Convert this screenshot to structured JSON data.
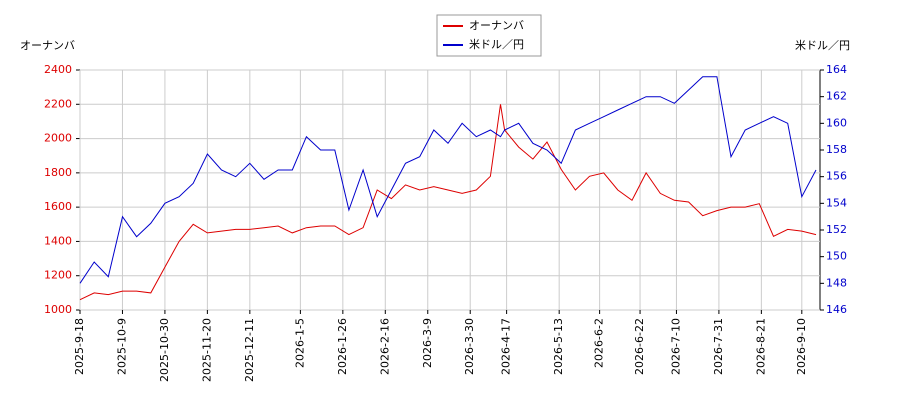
{
  "chart_data": {
    "type": "line",
    "y_label": "オーナンバ",
    "y2_label": "米ドル／円",
    "x": [
      "2025-9-18",
      "2025-9-25",
      "2025-10-2",
      "2025-10-9",
      "2025-10-16",
      "2025-10-23",
      "2025-10-30",
      "2025-11-6",
      "2025-11-13",
      "2025-11-20",
      "2025-11-27",
      "2025-12-4",
      "2025-12-11",
      "2025-12-18",
      "2025-12-25",
      "2026-1-1",
      "2026-1-8",
      "2026-1-15",
      "2026-1-22",
      "2026-1-29",
      "2026-2-5",
      "2026-2-12",
      "2026-2-19",
      "2026-2-26",
      "2026-3-5",
      "2026-3-12",
      "2026-3-19",
      "2026-3-26",
      "2026-4-2",
      "2026-4-9",
      "2026-4-14",
      "2026-4-16",
      "2026-4-23",
      "2026-4-30",
      "2026-5-7",
      "2026-5-14",
      "2026-5-21",
      "2026-5-28",
      "2026-6-4",
      "2026-6-11",
      "2026-6-18",
      "2026-6-25",
      "2026-7-2",
      "2026-7-9",
      "2026-7-16",
      "2026-7-23",
      "2026-7-30",
      "2026-8-6",
      "2026-8-13",
      "2026-8-20",
      "2026-8-27",
      "2026-9-3",
      "2026-9-10",
      "2026-9-17"
    ],
    "series": [
      {
        "name": "オーナンバ",
        "color": "#dd0000",
        "values": [
          1060,
          1100,
          1090,
          1110,
          1110,
          1100,
          1250,
          1400,
          1500,
          1450,
          1460,
          1470,
          1470,
          1480,
          1490,
          1450,
          1480,
          1490,
          1490,
          1440,
          1480,
          1700,
          1650,
          1730,
          1700,
          1720,
          1700,
          1680,
          1700,
          1780,
          2200,
          2050,
          1950,
          1880,
          1980,
          1820,
          1700,
          1780,
          1800,
          1700,
          1640,
          1800,
          1680,
          1640,
          1630,
          1550,
          1580,
          1600,
          1600,
          1620,
          1430,
          1470,
          1460,
          1440
        ]
      },
      {
        "name": "米ドル／円",
        "color": "#0000cc",
        "axis": "y2",
        "values": [
          148,
          149.6,
          148.5,
          153,
          151.5,
          152.5,
          154,
          154.5,
          155.5,
          157.7,
          156.5,
          156,
          157,
          155.8,
          156.5,
          156.5,
          159,
          158,
          158,
          153.5,
          156.5,
          153,
          155,
          157,
          157.5,
          159.5,
          158.5,
          160,
          159,
          159.5,
          159,
          159.5,
          160,
          158.5,
          158,
          157,
          159.5,
          160,
          160.5,
          161,
          161.5,
          162,
          162,
          161.5,
          162.5,
          163.5,
          163.5,
          157.5,
          159.5,
          160,
          160.5,
          160,
          154.5,
          156.5
        ]
      }
    ],
    "xlim": [
      "2025-9-18",
      "2026-9-19"
    ],
    "xticks": [
      "2025-9-18",
      "2025-10-9",
      "2025-10-30",
      "2025-11-20",
      "2025-12-11",
      "2026-1-5",
      "2026-1-26",
      "2026-2-16",
      "2026-3-9",
      "2026-3-30",
      "2026-4-17",
      "2026-5-13",
      "2026-6-2",
      "2026-6-22",
      "2026-7-10",
      "2026-7-31",
      "2026-8-21",
      "2026-9-10"
    ],
    "ylim": [
      1000,
      2400
    ],
    "yticks": [
      1000,
      1200,
      1400,
      1600,
      1800,
      2000,
      2200,
      2400
    ],
    "y2lim": [
      146,
      164
    ],
    "y2ticks": [
      146,
      148,
      150,
      152,
      154,
      156,
      158,
      160,
      162,
      164
    ],
    "grid": true
  }
}
